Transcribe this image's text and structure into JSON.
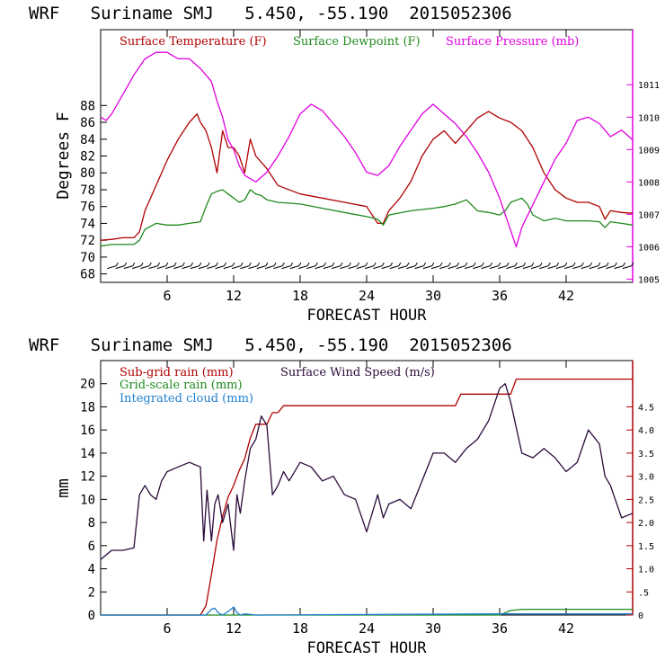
{
  "colors": {
    "temperature": "#b00000",
    "dewpoint": "#1f8a1f",
    "pressure": "#e000e0",
    "subgrid_rain": "#b00000",
    "gridscale_rain": "#1f8a1f",
    "cloud": "#1e7fd0",
    "wind": "#2a0a3a",
    "axis": "#000000",
    "right_axis_top": "#e000e0",
    "right_axis_bottom": "#b00000"
  },
  "chart_data": [
    {
      "type": "line",
      "title": "WRF   Suriname SMJ   5.450, -55.190  2015052306",
      "xlabel": "FORECAST HOUR",
      "ylabel": "Degrees F",
      "xlim": [
        0,
        48
      ],
      "ylim": [
        67,
        97
      ],
      "y2lim": [
        1004.9,
        1012.7
      ],
      "xticks": [
        6,
        12,
        18,
        24,
        30,
        36,
        42
      ],
      "xtick_labels": [
        "6",
        "12",
        "18",
        "24",
        "30",
        "36",
        "42"
      ],
      "yticks": [
        68,
        70,
        72,
        74,
        76,
        78,
        80,
        82,
        84,
        86,
        88
      ],
      "ytick_labels": [
        "68",
        "70",
        "72",
        "74",
        "76",
        "78",
        "80",
        "82",
        "84",
        "86",
        "88"
      ],
      "y2ticks": [
        1005,
        1006,
        1007,
        1008,
        1009,
        1010,
        1011
      ],
      "y2tick_labels": [
        "1005",
        "1006",
        "1007",
        "1008",
        "1009",
        "1010",
        "1011"
      ],
      "legend": [
        "Surface Temperature (F)",
        "Surface Dewpoint (F)",
        "Surface Pressure (mb)"
      ],
      "series": [
        {
          "name": "Surface Temperature (F)",
          "axis": "left",
          "x": [
            0,
            1,
            2,
            3,
            3.5,
            4,
            5,
            6,
            7,
            8,
            8.7,
            9,
            9.5,
            10,
            10.5,
            11,
            11.5,
            12,
            12.5,
            13,
            13.5,
            14,
            15,
            16,
            18,
            20,
            22,
            24,
            25,
            25.5,
            26,
            27,
            28,
            29,
            30,
            31,
            32,
            33,
            34,
            35,
            36,
            37,
            38,
            39,
            40,
            41,
            42,
            43,
            44,
            45,
            45.5,
            46,
            47,
            48
          ],
          "y": [
            72,
            72.1,
            72.3,
            72.3,
            73,
            75.5,
            78.5,
            81.5,
            84,
            86,
            87,
            86,
            85,
            83,
            80,
            85,
            83,
            83,
            82,
            80,
            84,
            82,
            80.5,
            78.5,
            77.5,
            77,
            76.5,
            76,
            74,
            74,
            75.5,
            77,
            79,
            82,
            84,
            85,
            83.5,
            85,
            86.5,
            87.3,
            86.5,
            86,
            85,
            83,
            80,
            78,
            77,
            76.5,
            76.5,
            76,
            74.5,
            75.5,
            75.3,
            75.2
          ]
        },
        {
          "name": "Surface Dewpoint (F)",
          "axis": "left",
          "x": [
            0,
            1,
            2,
            3,
            3.5,
            4,
            5,
            6,
            7,
            8,
            9,
            9.5,
            10,
            10.5,
            11,
            11.5,
            12,
            12.5,
            13,
            13.5,
            14,
            14.5,
            15,
            16,
            18,
            20,
            22,
            24,
            25,
            25.5,
            26,
            28,
            30,
            31,
            32,
            33,
            34,
            35,
            36,
            36.5,
            37,
            38,
            38.5,
            39,
            40,
            41,
            42,
            44,
            45,
            45.5,
            46,
            47,
            48
          ],
          "y": [
            71.3,
            71.5,
            71.5,
            71.5,
            72,
            73.3,
            74,
            73.8,
            73.8,
            74,
            74.2,
            76,
            77.5,
            77.8,
            78,
            77.5,
            77,
            76.5,
            76.8,
            78,
            77.5,
            77.3,
            76.8,
            76.5,
            76.3,
            75.8,
            75.3,
            74.8,
            74.5,
            73.8,
            75,
            75.5,
            75.8,
            76,
            76.3,
            76.8,
            75.5,
            75.3,
            75,
            75.5,
            76.5,
            77,
            76.3,
            75,
            74.3,
            74.6,
            74.3,
            74.3,
            74.2,
            73.5,
            74.2,
            74,
            73.8
          ]
        },
        {
          "name": "Surface Pressure (mb)",
          "axis": "right",
          "x": [
            0,
            0.5,
            1,
            2,
            3,
            4,
            5,
            6,
            7,
            8,
            9,
            10,
            10.5,
            11,
            11.5,
            12,
            12.5,
            13,
            14,
            15,
            16,
            17,
            18,
            19,
            20,
            21,
            22,
            23,
            24,
            25,
            26,
            27,
            28,
            29,
            30,
            31,
            32,
            33,
            34,
            35,
            36,
            37,
            37.5,
            38,
            39,
            40,
            41,
            42,
            43,
            44,
            45,
            46,
            47,
            48
          ],
          "y": [
            1010,
            1009.9,
            1010.1,
            1010.7,
            1011.3,
            1011.8,
            1012,
            1012,
            1011.8,
            1011.8,
            1011.5,
            1011.1,
            1010.5,
            1010,
            1009.3,
            1009,
            1008.5,
            1008.2,
            1008,
            1008.3,
            1008.8,
            1009.4,
            1010.1,
            1010.4,
            1010.2,
            1009.8,
            1009.4,
            1008.9,
            1008.3,
            1008.2,
            1008.5,
            1009.1,
            1009.6,
            1010.1,
            1010.4,
            1010.1,
            1009.8,
            1009.4,
            1008.9,
            1008.3,
            1007.5,
            1006.5,
            1006,
            1006.6,
            1007.3,
            1008,
            1008.7,
            1009.2,
            1009.9,
            1010,
            1009.8,
            1009.4,
            1009.6,
            1009.3
          ]
        }
      ]
    },
    {
      "type": "line",
      "title": "WRF   Suriname SMJ   5.450, -55.190  2015052306",
      "xlabel": "FORECAST HOUR",
      "ylabel": "mm",
      "xlim": [
        0,
        48
      ],
      "ylim": [
        0,
        22
      ],
      "y2lim": [
        0,
        5.5
      ],
      "xticks": [
        6,
        12,
        18,
        24,
        30,
        36,
        42
      ],
      "xtick_labels": [
        "6",
        "12",
        "18",
        "24",
        "30",
        "36",
        "42"
      ],
      "yticks": [
        0,
        2,
        4,
        6,
        8,
        10,
        12,
        14,
        16,
        18,
        20
      ],
      "ytick_labels": [
        "0",
        "2",
        "4",
        "6",
        "8",
        "10",
        "12",
        "14",
        "16",
        "18",
        "20"
      ],
      "y2ticks": [
        0,
        0.5,
        1,
        1.5,
        2,
        2.5,
        3,
        3.5,
        4,
        4.5
      ],
      "y2tick_labels": [
        "0",
        ".5",
        "1.0",
        "1.5",
        "2.0",
        "2.5",
        "3.0",
        "3.5",
        "4.0",
        "4.5"
      ],
      "legend": [
        "Sub-grid rain (mm)",
        "Grid-scale rain (mm)",
        "Integrated cloud (mm)",
        "Surface Wind Speed (m/s)"
      ],
      "series": [
        {
          "name": "Sub-grid rain (mm)",
          "axis": "left",
          "x": [
            0,
            9,
            9.5,
            10,
            10.5,
            11,
            11.5,
            12,
            12.5,
            13,
            13.5,
            14,
            15,
            15.5,
            16,
            16.5,
            32,
            32.5,
            36,
            37,
            37.5,
            48
          ],
          "y": [
            0,
            0,
            0.8,
            3.5,
            6.5,
            8.5,
            10.2,
            11.2,
            12.5,
            13.5,
            15.3,
            16.5,
            16.5,
            17.5,
            17.5,
            18.1,
            18.1,
            19.1,
            19.1,
            19.1,
            20.4,
            20.4
          ]
        },
        {
          "name": "Grid-scale rain (mm)",
          "axis": "left",
          "x": [
            0,
            36,
            37,
            38,
            48
          ],
          "y": [
            0,
            0,
            0.4,
            0.5,
            0.5
          ]
        },
        {
          "name": "Integrated cloud (mm)",
          "axis": "left",
          "x": [
            0,
            9.5,
            10,
            10.3,
            10.6,
            11,
            11.5,
            12,
            12.3,
            12.6,
            13,
            14,
            36,
            48
          ],
          "y": [
            0,
            0,
            0.5,
            0.6,
            0.2,
            0,
            0.3,
            0.7,
            0.2,
            0,
            0.1,
            0,
            0.1,
            0.1
          ]
        },
        {
          "name": "Surface Wind Speed (m/s)",
          "axis": "right",
          "x": [
            0,
            1,
            2,
            3,
            3.5,
            4,
            4.5,
            5,
            5.5,
            6,
            7,
            8,
            9,
            9.3,
            9.6,
            10,
            10.3,
            10.6,
            11,
            11.5,
            12,
            12.3,
            12.6,
            13,
            13.5,
            14,
            14.5,
            15,
            15.5,
            16,
            16.5,
            17,
            18,
            19,
            20,
            21,
            22,
            23,
            24,
            25,
            25.5,
            26,
            27,
            28,
            29,
            30,
            31,
            32,
            33,
            34,
            35,
            36,
            36.5,
            37,
            38,
            39,
            40,
            41,
            42,
            43,
            44,
            45,
            45.5,
            46,
            47,
            48
          ],
          "y": [
            1.2,
            1.4,
            1.4,
            1.45,
            2.6,
            2.8,
            2.6,
            2.5,
            2.9,
            3.1,
            3.2,
            3.3,
            3.2,
            1.6,
            2.7,
            1.6,
            2.4,
            2.6,
            2.0,
            2.4,
            1.4,
            2.6,
            2.2,
            2.9,
            3.6,
            3.8,
            4.3,
            4.1,
            2.6,
            2.8,
            3.1,
            2.9,
            3.3,
            3.2,
            2.9,
            3.0,
            2.6,
            2.5,
            1.8,
            2.6,
            2.1,
            2.4,
            2.5,
            2.3,
            2.9,
            3.5,
            3.5,
            3.3,
            3.6,
            3.8,
            4.2,
            4.9,
            5.0,
            4.6,
            3.5,
            3.4,
            3.6,
            3.4,
            3.1,
            3.3,
            4.0,
            3.7,
            3.0,
            2.8,
            2.1,
            2.2
          ]
        }
      ]
    }
  ]
}
